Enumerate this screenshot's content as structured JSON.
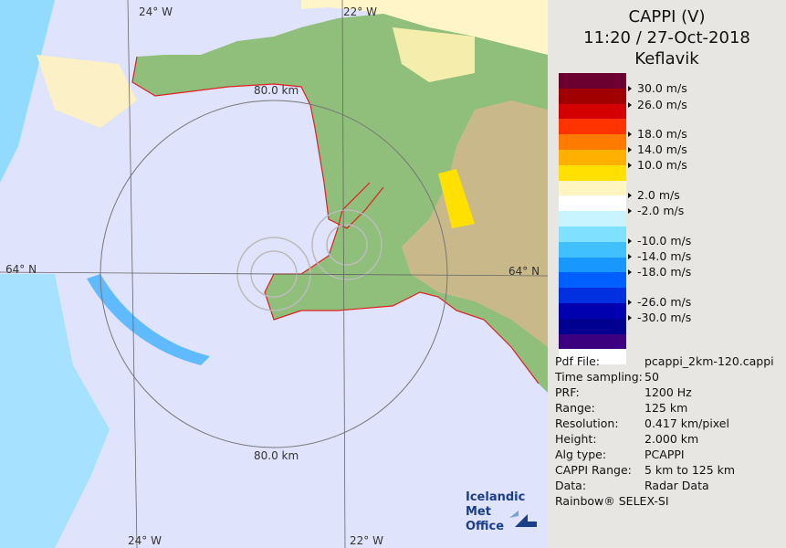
{
  "header": {
    "title": "CAPPI (V)",
    "datetime": "11:20 / 27-Oct-2018",
    "station": "Keflavik"
  },
  "legend": {
    "colors": [
      "#6b0030",
      "#a00000",
      "#d40000",
      "#ff3300",
      "#ff7a00",
      "#ffb000",
      "#ffe000",
      "#fff5c0",
      "#ffffff",
      "#c8f4ff",
      "#80e0ff",
      "#40c0ff",
      "#1898ff",
      "#0060ff",
      "#0030e0",
      "#0000b0",
      "#000090",
      "#3a0080",
      "#ffffff"
    ],
    "ticks": [
      "30.0 m/s",
      "26.0 m/s",
      "18.0 m/s",
      "14.0 m/s",
      "10.0 m/s",
      "2.0 m/s",
      "-2.0 m/s",
      "-10.0 m/s",
      "-14.0 m/s",
      "-18.0 m/s",
      "-26.0 m/s",
      "-30.0 m/s"
    ]
  },
  "info": [
    {
      "k": "Pdf File:",
      "v": "pcappi_2km-120.cappi"
    },
    {
      "k": "Time sampling:",
      "v": "50"
    },
    {
      "k": "PRF:",
      "v": "1200 Hz"
    },
    {
      "k": "Range:",
      "v": "125 km"
    },
    {
      "k": "Resolution:",
      "v": "0.417 km/pixel"
    },
    {
      "k": "Height:",
      "v": "2.000 km"
    },
    {
      "k": "Alg type:",
      "v": "PCAPPI"
    },
    {
      "k": "CAPPI Range:",
      "v": "5 km to 125 km"
    },
    {
      "k": "Data:",
      "v": "Radar Data"
    }
  ],
  "footer": "Rainbow® SELEX-SI",
  "map": {
    "lon_labels": [
      "24° W",
      "22° W",
      "24° W",
      "22° W"
    ],
    "lat_label": "64° N",
    "lat_label_right": "64° N",
    "ring_label_top": "80.0 km",
    "ring_label_bottom": "80.0 km",
    "logo_line1": "Icelandic Met",
    "logo_line2": "Office"
  }
}
